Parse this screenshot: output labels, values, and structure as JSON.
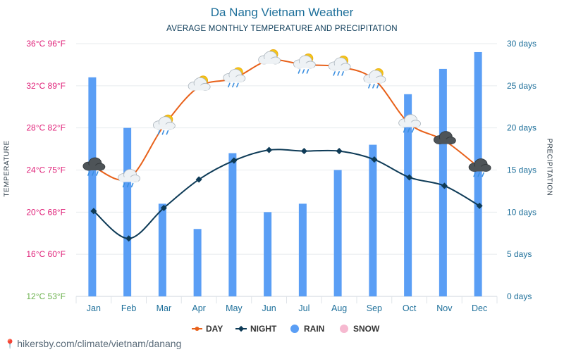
{
  "title": "Da Nang Vietnam Weather",
  "subtitle": "AVERAGE MONTHLY TEMPERATURE AND PRECIPITATION",
  "left_axis_title": "TEMPERATURE",
  "right_axis_title": "PRECIPITATION",
  "source": "hikersby.com/climate/vietnam/danang",
  "colors": {
    "day": "#e8611a",
    "night": "#0e3b57",
    "rain": "#5a9ef5",
    "snow": "#f6b9d0",
    "temp_labels": "#e0237a",
    "temp_bottom_label": "#6ab04c",
    "precip_labels": "#1d6f9a",
    "month_labels": "#1d6f9a"
  },
  "chart_data": {
    "type": "line",
    "categories": [
      "Jan",
      "Feb",
      "Mar",
      "Apr",
      "May",
      "Jun",
      "Jul",
      "Aug",
      "Sep",
      "Oct",
      "Nov",
      "Dec"
    ],
    "series": [
      {
        "name": "DAY",
        "type": "line",
        "axis": "temperature",
        "values": [
          24.3,
          23.2,
          28.2,
          31.9,
          32.7,
          34.4,
          34.0,
          33.8,
          32.6,
          28.4,
          26.8,
          24.2
        ]
      },
      {
        "name": "NIGHT",
        "type": "line",
        "axis": "temperature",
        "values": [
          20.1,
          17.5,
          20.4,
          23.1,
          24.9,
          25.9,
          25.8,
          25.8,
          25.0,
          23.3,
          22.5,
          20.6
        ]
      },
      {
        "name": "RAIN",
        "type": "bar",
        "axis": "precipitation",
        "values": [
          26,
          20,
          11,
          8,
          17,
          10,
          11,
          15,
          18,
          24,
          27,
          29
        ]
      },
      {
        "name": "SNOW",
        "type": "bar",
        "axis": "precipitation",
        "values": [
          0,
          0,
          0,
          0,
          0,
          0,
          0,
          0,
          0,
          0,
          0,
          0
        ]
      }
    ],
    "temperature_axis": {
      "range_c": [
        12,
        36
      ],
      "ticks": [
        "36°C 96°F",
        "32°C 89°F",
        "28°C 82°F",
        "24°C 75°F",
        "20°C 68°F",
        "16°C 60°F",
        "12°C 53°F"
      ]
    },
    "precipitation_axis": {
      "range_days": [
        0,
        30
      ],
      "ticks": [
        "30 days",
        "25 days",
        "20 days",
        "15 days",
        "10 days",
        "5 days",
        "0 days"
      ]
    },
    "weather_icons": [
      "rain-cloud-dark",
      "rain-cloud",
      "rain-sun",
      "sun-cloud",
      "rain-sun",
      "sun-cloud",
      "rain-sun",
      "rain-sun",
      "rain-sun",
      "rain-cloud",
      "dark-cloud",
      "rain-cloud-dark"
    ],
    "legend": [
      "DAY",
      "NIGHT",
      "RAIN",
      "SNOW"
    ],
    "legend_position": "bottom",
    "grid": true
  }
}
